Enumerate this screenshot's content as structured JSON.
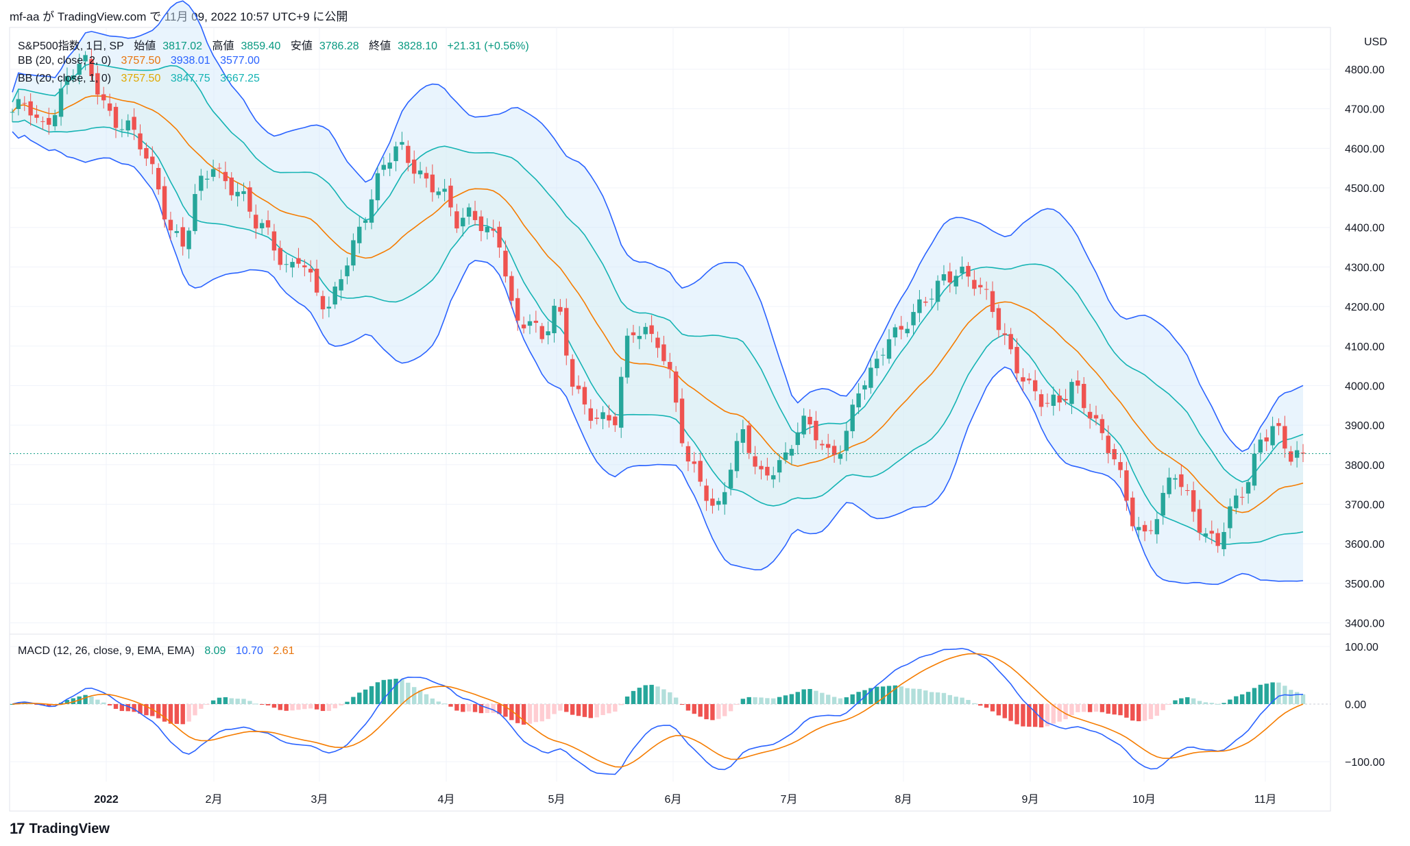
{
  "caption": "mf-aa が TradingView.com で 11月 09, 2022 10:57 UTC+9 に公開",
  "legend": {
    "symbol": "S&P500指数, 1日, SP",
    "open_label": "始値",
    "open": "3817.02",
    "high_label": "高値",
    "high": "3859.40",
    "low_label": "安値",
    "low": "3786.28",
    "close_label": "終値",
    "close": "3828.10",
    "change": "+21.31 (+0.56%)",
    "bb1_name": "BB (20, close, 2, 0)",
    "bb1_basis": "3757.50",
    "bb1_upper": "3938.01",
    "bb1_lower": "3577.00",
    "bb2_name": "BB (20, close, 1, 0)",
    "bb2_basis": "3757.50",
    "bb2_upper": "3847.75",
    "bb2_lower": "3667.25",
    "macd_name": "MACD (12, 26, close, 9, EMA, EMA)",
    "macd_hist": "8.09",
    "macd_line": "10.70",
    "macd_signal": "2.61"
  },
  "brand": "TradingView",
  "colors": {
    "up": "#26a69a",
    "down": "#ef5350",
    "upper_bb": "#2962ff",
    "inner_bb": "#14b3b3",
    "basis": "#f57c00",
    "macd": "#2962ff",
    "signal": "#f57c00"
  },
  "chart_data": {
    "type": "candlestick",
    "currency": "USD",
    "price_ticks": [
      "4800.00",
      "4700.00",
      "4600.00",
      "4500.00",
      "4400.00",
      "4300.00",
      "4200.00",
      "4100.00",
      "4000.00",
      "3900.00",
      "3800.00",
      "3700.00",
      "3600.00",
      "3500.00",
      "3400.00"
    ],
    "macd_ticks": [
      "100.00",
      "0.00",
      "−100.00"
    ],
    "months": [
      "2022",
      "2月",
      "3月",
      "4月",
      "5月",
      "6月",
      "7月",
      "8月",
      "9月",
      "10月",
      "11月"
    ],
    "last_price": 3828.1,
    "close_path": [
      4680,
      4720,
      4660,
      4700,
      4780,
      4820,
      4760,
      4670,
      4650,
      4600,
      4530,
      4400,
      4350,
      4500,
      4560,
      4520,
      4480,
      4400,
      4380,
      4300,
      4330,
      4240,
      4180,
      4300,
      4380,
      4460,
      4560,
      4620,
      4560,
      4500,
      4480,
      4420,
      4450,
      4390,
      4350,
      4160,
      4180,
      4120,
      4200,
      4010,
      3950,
      3920,
      3900,
      4130,
      4150,
      4120,
      4000,
      3800,
      3770,
      3680,
      3780,
      3880,
      3770,
      3800,
      3820,
      3900,
      3880,
      3830,
      3860,
      3980,
      4030,
      4130,
      4150,
      4180,
      4220,
      4280,
      4300,
      4260,
      4210,
      4140,
      4060,
      3990,
      3940,
      3960,
      4020,
      3940,
      3860,
      3800,
      3680,
      3620,
      3680,
      3780,
      3720,
      3640,
      3590,
      3680,
      3750,
      3870,
      3900,
      3810,
      3828
    ]
  }
}
